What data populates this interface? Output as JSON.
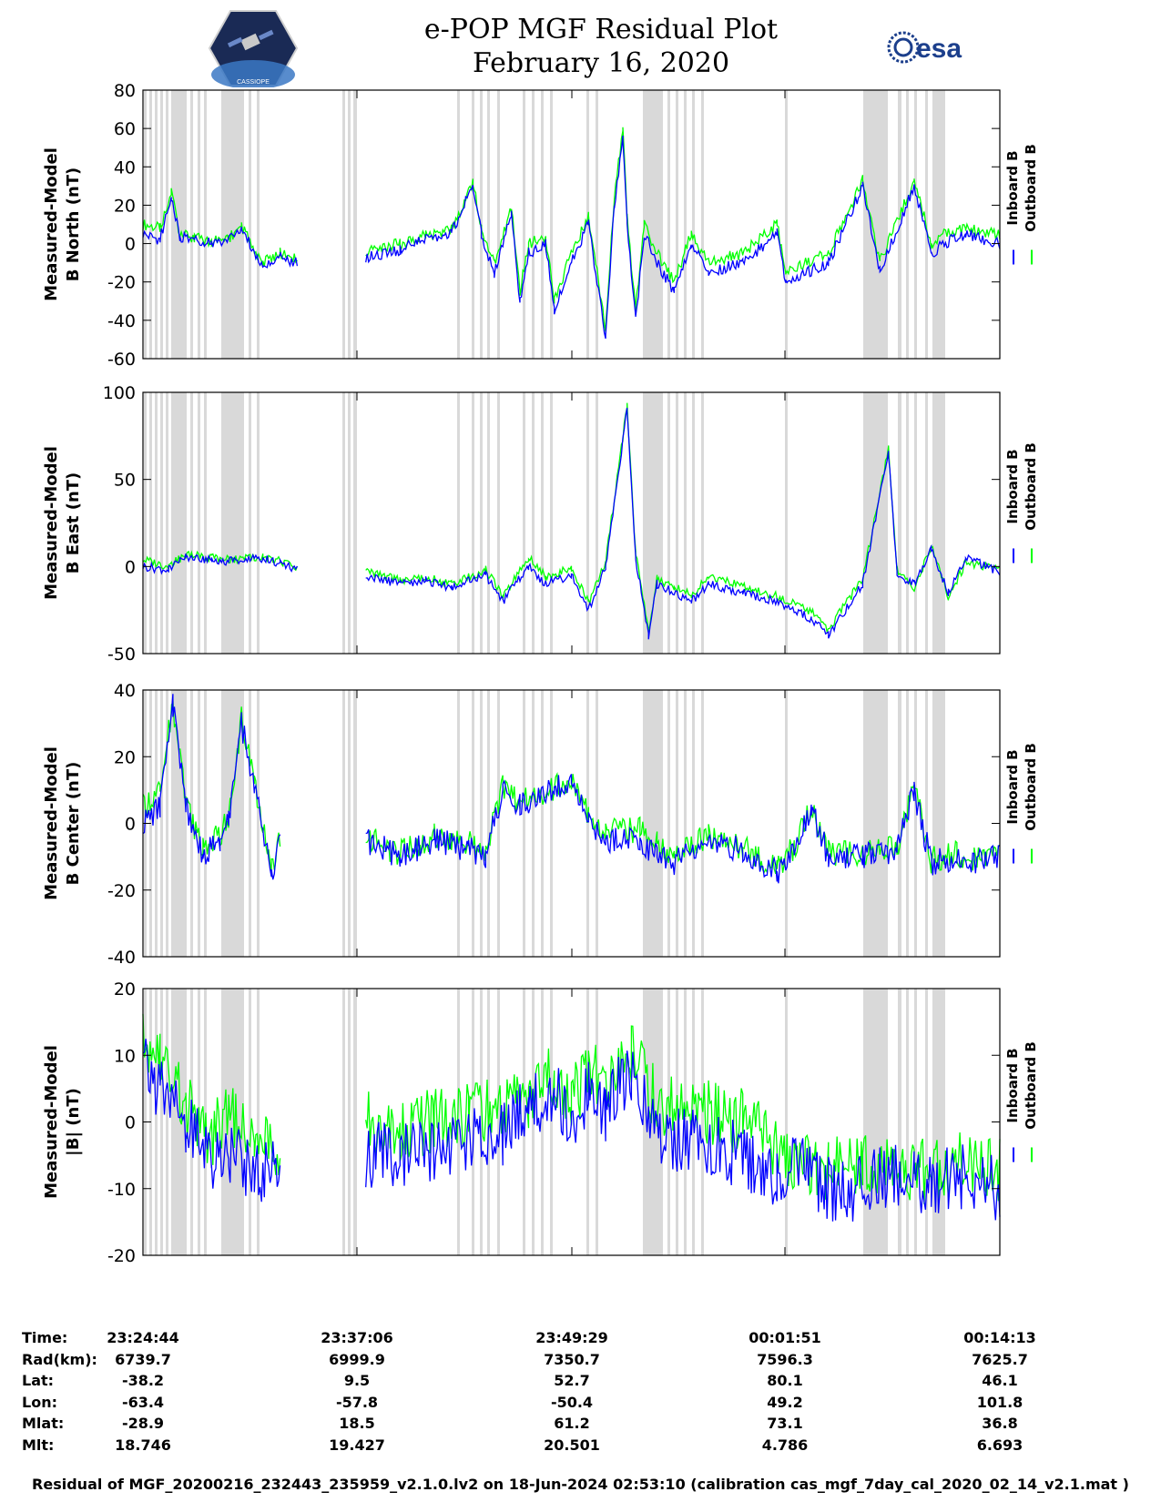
{
  "header": {
    "title_line1": "e-POP MGF Residual Plot",
    "title_line2": "February 16, 2020",
    "logo_left_text": "CASSIOPE",
    "logo_right_text": "esa"
  },
  "colors": {
    "inboard": "#0000ff",
    "outboard": "#00ff00",
    "shade": "#d9d9d9"
  },
  "legend": {
    "inboard": "Inboard B",
    "outboard": "Outboard B"
  },
  "chart_data": [
    {
      "type": "line",
      "ylabel1": "Measured-Model",
      "ylabel2": "B North (nT)",
      "ylim": [
        -60,
        80
      ],
      "yticks": [
        -60,
        -40,
        -20,
        0,
        20,
        40,
        60,
        80
      ],
      "series": [
        {
          "name": "Inboard B",
          "x": [
            0,
            0.02,
            0.033,
            0.043,
            0.06,
            0.08,
            0.1,
            0.115,
            0.14,
            0.16,
            0.18,
            0.24,
            0.26,
            0.3,
            0.33,
            0.36,
            0.385,
            0.395,
            0.41,
            0.43,
            0.44,
            0.45,
            0.47,
            0.48,
            0.5,
            0.52,
            0.54,
            0.55,
            0.56,
            0.565,
            0.575,
            0.585,
            0.6,
            0.62,
            0.64,
            0.66,
            0.7,
            0.74,
            0.75,
            0.8,
            0.84,
            0.86,
            0.9,
            0.92,
            0.935,
            0.96,
            1.0
          ],
          "y": [
            5,
            2,
            25,
            3,
            2,
            0,
            2,
            8,
            -12,
            -7,
            -10,
            null,
            -7,
            -3,
            2,
            5,
            30,
            5,
            -15,
            15,
            -30,
            -5,
            0,
            -35,
            -10,
            10,
            -50,
            20,
            55,
            10,
            -40,
            5,
            -10,
            -25,
            0,
            -15,
            -10,
            5,
            -20,
            -10,
            30,
            -15,
            30,
            -5,
            0,
            5,
            0
          ]
        },
        {
          "name": "Outboard B",
          "x": [
            0,
            0.02,
            0.033,
            0.043,
            0.06,
            0.08,
            0.1,
            0.115,
            0.14,
            0.16,
            0.18,
            0.24,
            0.26,
            0.3,
            0.33,
            0.36,
            0.385,
            0.395,
            0.41,
            0.43,
            0.44,
            0.45,
            0.47,
            0.48,
            0.5,
            0.52,
            0.54,
            0.55,
            0.56,
            0.565,
            0.575,
            0.585,
            0.6,
            0.62,
            0.64,
            0.66,
            0.7,
            0.74,
            0.75,
            0.8,
            0.84,
            0.86,
            0.9,
            0.92,
            0.935,
            0.96,
            1.0
          ],
          "y": [
            10,
            8,
            27,
            5,
            3,
            1,
            3,
            9,
            -10,
            -5,
            -8,
            null,
            -4,
            0,
            4,
            7,
            32,
            8,
            -10,
            18,
            -25,
            0,
            4,
            -30,
            -5,
            14,
            -45,
            25,
            60,
            14,
            -35,
            10,
            -5,
            -20,
            5,
            -10,
            -5,
            10,
            -15,
            -5,
            33,
            -10,
            33,
            0,
            5,
            8,
            5
          ]
        }
      ]
    },
    {
      "type": "line",
      "ylabel1": "Measured-Model",
      "ylabel2": "B East (nT)",
      "ylim": [
        -50,
        100
      ],
      "yticks": [
        -50,
        0,
        50,
        100
      ],
      "series": [
        {
          "name": "Inboard B",
          "x": [
            0,
            0.03,
            0.05,
            0.08,
            0.1,
            0.14,
            0.16,
            0.18,
            0.24,
            0.26,
            0.3,
            0.33,
            0.36,
            0.4,
            0.42,
            0.45,
            0.47,
            0.5,
            0.52,
            0.54,
            0.565,
            0.575,
            0.59,
            0.6,
            0.62,
            0.64,
            0.66,
            0.7,
            0.74,
            0.78,
            0.8,
            0.84,
            0.87,
            0.88,
            0.9,
            0.92,
            0.94,
            0.96,
            1.0
          ],
          "y": [
            0,
            -2,
            5,
            4,
            3,
            5,
            2,
            -2,
            null,
            -5,
            -10,
            -8,
            -12,
            -5,
            -20,
            0,
            -10,
            -5,
            -25,
            0,
            90,
            5,
            -40,
            -10,
            -15,
            -20,
            -10,
            -15,
            -20,
            -30,
            -40,
            -10,
            65,
            -5,
            -10,
            10,
            -15,
            5,
            -3
          ]
        },
        {
          "name": "Outboard B",
          "x": [
            0,
            0.03,
            0.05,
            0.08,
            0.1,
            0.14,
            0.16,
            0.18,
            0.24,
            0.26,
            0.3,
            0.33,
            0.36,
            0.4,
            0.42,
            0.45,
            0.47,
            0.5,
            0.52,
            0.54,
            0.565,
            0.575,
            0.59,
            0.6,
            0.62,
            0.64,
            0.66,
            0.7,
            0.74,
            0.78,
            0.8,
            0.84,
            0.87,
            0.88,
            0.9,
            0.92,
            0.94,
            0.96,
            1.0
          ],
          "y": [
            4,
            0,
            7,
            5,
            4,
            6,
            3,
            0,
            null,
            -3,
            -8,
            -6,
            -10,
            -2,
            -17,
            5,
            -6,
            -1,
            -21,
            3,
            92,
            8,
            -36,
            -7,
            -12,
            -16,
            -6,
            -11,
            -17,
            -26,
            -36,
            -7,
            67,
            -2,
            -13,
            12,
            -18,
            2,
            -1
          ]
        }
      ]
    },
    {
      "type": "line",
      "ylabel1": "Measured-Model",
      "ylabel2": "B Center (nT)",
      "ylim": [
        -40,
        40
      ],
      "yticks": [
        -40,
        -20,
        0,
        20,
        40
      ],
      "series": [
        {
          "name": "Inboard B",
          "x": [
            0,
            0.02,
            0.035,
            0.05,
            0.07,
            0.09,
            0.1,
            0.115,
            0.13,
            0.15,
            0.16,
            0.24,
            0.26,
            0.3,
            0.34,
            0.38,
            0.4,
            0.42,
            0.44,
            0.48,
            0.5,
            0.52,
            0.54,
            0.58,
            0.6,
            0.62,
            0.66,
            0.7,
            0.74,
            0.76,
            0.78,
            0.8,
            0.84,
            0.88,
            0.9,
            0.92,
            0.95,
            0.97,
            1.0
          ],
          "y": [
            0,
            5,
            35,
            5,
            -10,
            -5,
            0,
            30,
            10,
            -15,
            -5,
            null,
            -5,
            -10,
            -5,
            -8,
            -10,
            10,
            5,
            10,
            12,
            0,
            -5,
            -5,
            -10,
            -12,
            -5,
            -8,
            -15,
            -8,
            5,
            -10,
            -10,
            -8,
            10,
            -12,
            -10,
            -12,
            -10
          ]
        },
        {
          "name": "Outboard B",
          "x": [
            0,
            0.02,
            0.035,
            0.05,
            0.07,
            0.09,
            0.1,
            0.115,
            0.13,
            0.15,
            0.16,
            0.24,
            0.26,
            0.3,
            0.34,
            0.38,
            0.4,
            0.42,
            0.44,
            0.48,
            0.5,
            0.52,
            0.54,
            0.58,
            0.6,
            0.62,
            0.66,
            0.7,
            0.74,
            0.76,
            0.78,
            0.8,
            0.84,
            0.88,
            0.9,
            0.92,
            0.95,
            0.97,
            1.0
          ],
          "y": [
            5,
            10,
            36,
            6,
            -8,
            -3,
            1,
            31,
            11,
            -13,
            -4,
            null,
            -4,
            -9,
            -4,
            -6,
            -9,
            11,
            6,
            11,
            12,
            2,
            -2,
            -2,
            -6,
            -9,
            -4,
            -7,
            -14,
            -7,
            6,
            -9,
            -9,
            -7,
            11,
            -11,
            -9,
            -11,
            -9
          ]
        }
      ]
    },
    {
      "type": "line",
      "ylabel1": "Measured-Model",
      "ylabel2": "|B| (nT)",
      "ylim": [
        -20,
        20
      ],
      "yticks": [
        -20,
        -10,
        0,
        10,
        20
      ],
      "series": [
        {
          "name": "Inboard B",
          "x": [
            0,
            0.02,
            0.05,
            0.08,
            0.1,
            0.13,
            0.16,
            0.24,
            0.26,
            0.3,
            0.34,
            0.38,
            0.42,
            0.45,
            0.48,
            0.5,
            0.52,
            0.54,
            0.57,
            0.6,
            0.64,
            0.7,
            0.74,
            0.76,
            0.8,
            0.84,
            0.86,
            0.9,
            0.92,
            0.95,
            1.0
          ],
          "y": [
            8,
            5,
            0,
            -5,
            -5,
            -7,
            -7,
            null,
            -5,
            -5,
            -4,
            -3,
            -2,
            2,
            5,
            0,
            5,
            2,
            8,
            -2,
            -3,
            -5,
            -8,
            -5,
            -10,
            -10,
            -8,
            -8,
            -10,
            -8,
            -10
          ]
        },
        {
          "name": "Outboard B",
          "x": [
            0,
            0.02,
            0.05,
            0.08,
            0.1,
            0.13,
            0.16,
            0.24,
            0.26,
            0.3,
            0.34,
            0.38,
            0.42,
            0.45,
            0.48,
            0.5,
            0.52,
            0.54,
            0.57,
            0.6,
            0.64,
            0.7,
            0.74,
            0.76,
            0.8,
            0.84,
            0.86,
            0.9,
            0.92,
            0.95,
            1.0
          ],
          "y": [
            12,
            10,
            2,
            -2,
            1,
            -3,
            -4,
            null,
            0,
            -1,
            0,
            1,
            2,
            4,
            7,
            3,
            8,
            5,
            10,
            3,
            2,
            0,
            -4,
            -6,
            -7,
            -6,
            -6,
            -7,
            -8,
            -6,
            -7
          ]
        }
      ]
    }
  ],
  "time_axis": {
    "ticks": [
      "23:24:44",
      "23:37:06",
      "23:49:29",
      "00:01:51",
      "00:14:13"
    ],
    "rows": [
      {
        "label": "Time:",
        "values": [
          "23:24:44",
          "23:37:06",
          "23:49:29",
          "00:01:51",
          "00:14:13"
        ]
      },
      {
        "label": "Rad(km):",
        "values": [
          "6739.7",
          "6999.9",
          "7350.7",
          "7596.3",
          "7625.7"
        ]
      },
      {
        "label": "Lat:",
        "values": [
          "-38.2",
          "9.5",
          "52.7",
          "80.1",
          "46.1"
        ]
      },
      {
        "label": "Lon:",
        "values": [
          "-63.4",
          "-57.8",
          "-50.4",
          "49.2",
          "101.8"
        ]
      },
      {
        "label": "Mlat:",
        "values": [
          "-28.9",
          "18.5",
          "61.2",
          "73.1",
          "36.8"
        ]
      },
      {
        "label": "Mlt:",
        "values": [
          "18.746",
          "19.427",
          "20.501",
          "4.786",
          "6.693"
        ]
      }
    ]
  },
  "footer": {
    "text": "Residual of MGF_20200216_232443_235959_v2.1.0.lv2 on 18-Jun-2024 02:53:10 (calibration cas_mgf_7day_cal_2020_02_14_v2.1.mat )"
  }
}
